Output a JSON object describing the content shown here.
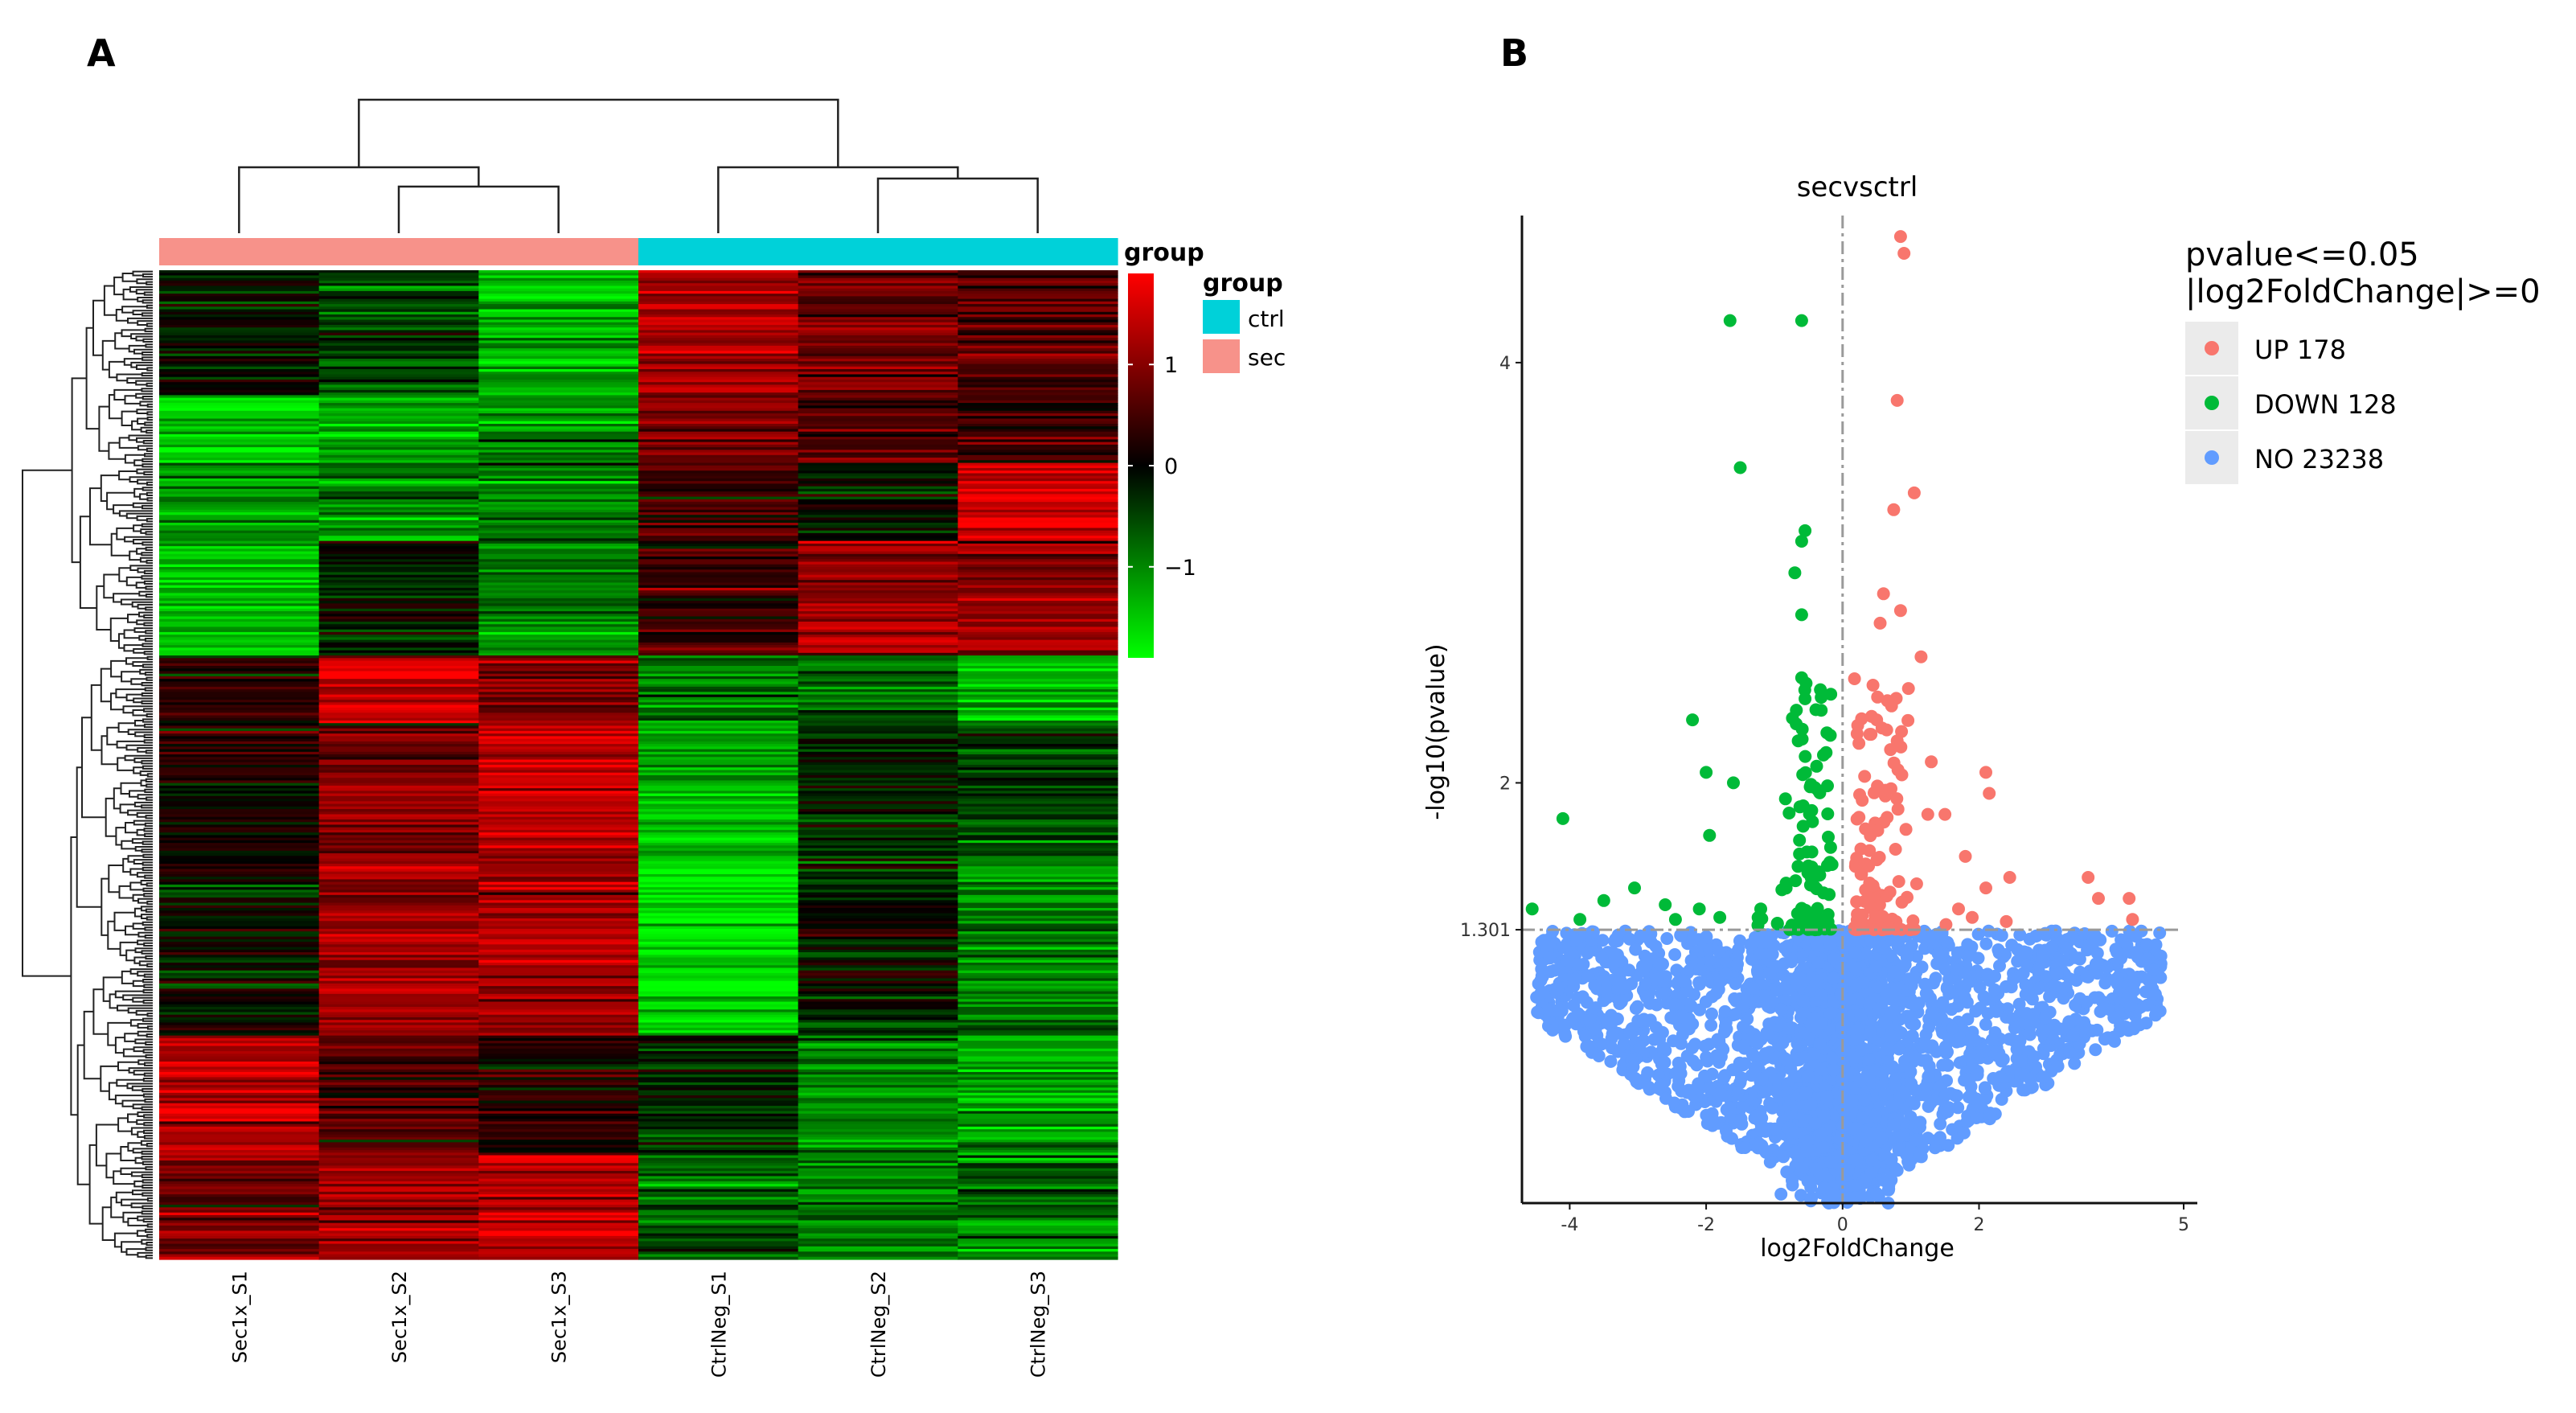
{
  "chart_data": [
    {
      "type": "heatmap",
      "panel_label": "A",
      "columns": [
        "Sec1x_S1",
        "Sec1x_S2",
        "Sec1x_S3",
        "CtrlNeg_S1",
        "CtrlNeg_S2",
        "CtrlNeg_S3"
      ],
      "column_groups": [
        "sec",
        "sec",
        "sec",
        "ctrl",
        "ctrl",
        "ctrl"
      ],
      "group_annotation_label": "group",
      "legend": {
        "title": "group",
        "items": [
          {
            "label": "ctrl",
            "color": "#00d1d9"
          },
          {
            "label": "sec",
            "color": "#f7928a"
          }
        ]
      },
      "color_scale": {
        "low": "#00ff00",
        "mid": "#000000",
        "high": "#ff0000",
        "range": [
          -1.9,
          1.9
        ],
        "ticks": [
          1,
          0,
          -1
        ],
        "tick_labels": [
          "1",
          "0",
          "−1"
        ]
      },
      "row_blocks": [
        {
          "rows": 48,
          "values": [
            -0.1,
            -0.5,
            -1.3,
            1.2,
            0.8,
            0.6
          ]
        },
        {
          "rows": 26,
          "values": [
            -1.5,
            -1.2,
            -1.0,
            1.0,
            0.5,
            0.4
          ]
        },
        {
          "rows": 30,
          "values": [
            -1.1,
            -1.0,
            -0.9,
            0.6,
            -0.1,
            1.5
          ]
        },
        {
          "rows": 44,
          "values": [
            -1.5,
            -0.2,
            -0.9,
            0.3,
            1.2,
            1.0
          ]
        },
        {
          "rows": 26,
          "values": [
            0.3,
            1.6,
            0.9,
            -0.9,
            -0.6,
            -1.3
          ]
        },
        {
          "rows": 50,
          "values": [
            0.2,
            1.0,
            1.4,
            -1.4,
            -0.3,
            -0.5
          ]
        },
        {
          "rows": 70,
          "values": [
            -0.1,
            1.2,
            1.1,
            -1.7,
            -0.1,
            -1.0
          ]
        },
        {
          "rows": 46,
          "values": [
            1.4,
            0.6,
            0.2,
            -0.3,
            -1.0,
            -1.2
          ]
        },
        {
          "rows": 40,
          "values": [
            0.9,
            1.1,
            1.5,
            -0.7,
            -0.9,
            -0.8
          ]
        }
      ],
      "column_dendrogram": "((Sec1x_S1,(Sec1x_S2,Sec1x_S3)),(CtrlNeg_S1,(CtrlNeg_S2,CtrlNeg_S3)))"
    },
    {
      "type": "scatter",
      "panel_label": "B",
      "title": "secvsctrl",
      "xlabel": "log2FoldChange",
      "ylabel": "-log10(pvalue)",
      "xlim": [
        -4.7,
        5.2
      ],
      "ylim": [
        0,
        4.7
      ],
      "xticks": [
        -4,
        -2,
        0,
        2,
        5
      ],
      "xtick_labels": [
        "-4",
        "-2",
        "0",
        "2",
        "5"
      ],
      "yticks": [
        1.301,
        2,
        4
      ],
      "ytick_labels": [
        "1.301",
        "2",
        "4"
      ],
      "thresholds": {
        "y": 1.301,
        "x": 0
      },
      "legend": {
        "title_lines": [
          "pvalue<=0.05",
          "|log2FoldChange|>=0"
        ],
        "items": [
          {
            "label": "UP 178",
            "color": "#f8766d"
          },
          {
            "label": "DOWN 128",
            "color": "#00ba38"
          },
          {
            "label": "NO 23238",
            "color": "#619cff"
          }
        ]
      },
      "series": [
        {
          "name": "UP",
          "color": "#f8766d",
          "points": [
            [
              0.85,
              4.6
            ],
            [
              0.9,
              4.52
            ],
            [
              0.8,
              3.82
            ],
            [
              1.05,
              3.38
            ],
            [
              0.75,
              3.3
            ],
            [
              0.6,
              2.9
            ],
            [
              0.55,
              2.76
            ],
            [
              0.85,
              2.82
            ],
            [
              1.15,
              2.6
            ],
            [
              0.5,
              2.3
            ],
            [
              0.8,
              2.2
            ],
            [
              1.3,
              2.1
            ],
            [
              2.1,
              2.05
            ],
            [
              2.15,
              1.95
            ],
            [
              1.25,
              1.85
            ],
            [
              1.5,
              1.85
            ],
            [
              1.8,
              1.65
            ],
            [
              2.45,
              1.55
            ],
            [
              2.1,
              1.5
            ],
            [
              3.6,
              1.55
            ],
            [
              3.75,
              1.45
            ],
            [
              4.2,
              1.45
            ],
            [
              4.25,
              1.35
            ],
            [
              2.4,
              1.34
            ],
            [
              1.7,
              1.4
            ],
            [
              1.9,
              1.36
            ]
          ]
        },
        {
          "name": "DOWN",
          "color": "#00ba38",
          "points": [
            [
              -1.65,
              4.2
            ],
            [
              -0.6,
              4.2
            ],
            [
              -1.5,
              3.5
            ],
            [
              -0.55,
              3.2
            ],
            [
              -0.6,
              3.15
            ],
            [
              -0.7,
              3.0
            ],
            [
              -0.6,
              2.8
            ],
            [
              -0.6,
              2.5
            ],
            [
              -0.55,
              2.4
            ],
            [
              -2.2,
              2.3
            ],
            [
              -0.65,
              2.2
            ],
            [
              -4.1,
              1.83
            ],
            [
              -2.0,
              2.05
            ],
            [
              -1.6,
              2.0
            ],
            [
              -1.95,
              1.75
            ],
            [
              -3.05,
              1.5
            ],
            [
              -3.5,
              1.44
            ],
            [
              -3.85,
              1.35
            ],
            [
              -4.55,
              1.4
            ],
            [
              -2.6,
              1.42
            ],
            [
              -2.45,
              1.35
            ],
            [
              -2.1,
              1.4
            ],
            [
              -1.8,
              1.36
            ],
            [
              -1.2,
              1.4
            ]
          ]
        },
        {
          "name": "NO",
          "color": "#619cff",
          "density_sides": [
            {
              "side": "left",
              "xmin": -4.5
            },
            {
              "side": "right",
              "xmax": 4.7
            }
          ]
        }
      ]
    }
  ]
}
